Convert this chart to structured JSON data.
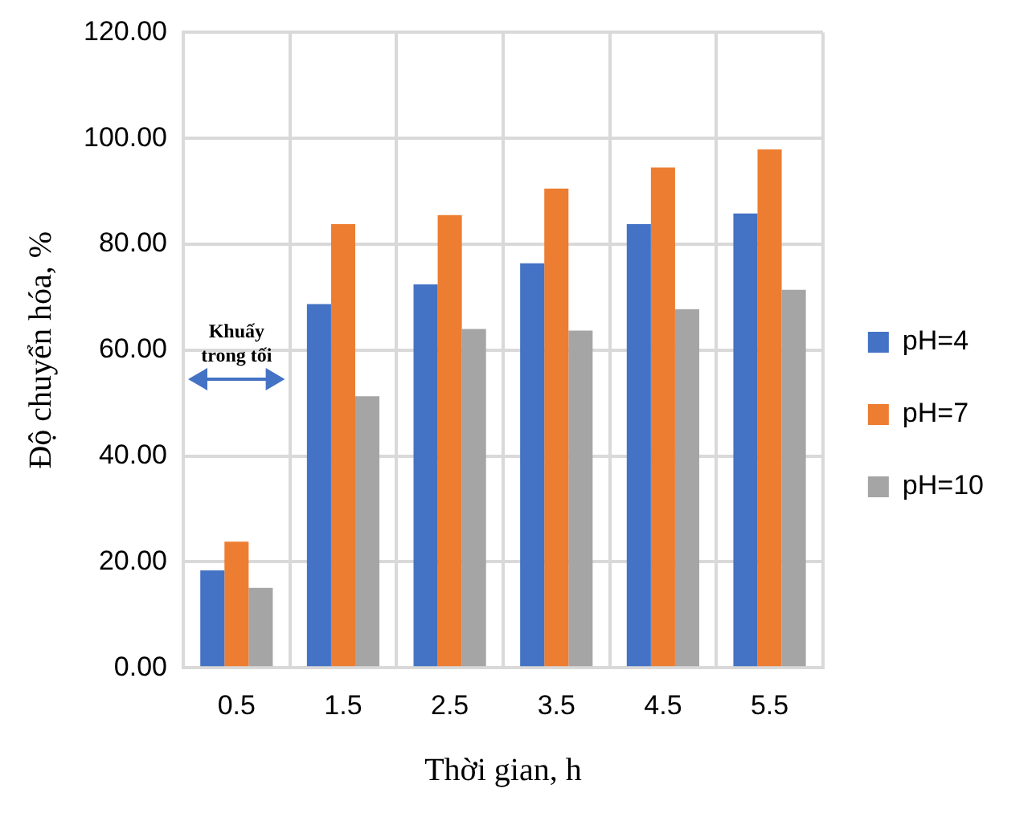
{
  "chart_data": {
    "type": "bar",
    "xlabel": "Thời gian, h",
    "ylabel": "Độ chuyển hóa, %",
    "categories": [
      "0.5",
      "1.5",
      "2.5",
      "3.5",
      "4.5",
      "5.5"
    ],
    "series": [
      {
        "name": "pH=4",
        "color": "#4472c4",
        "values": [
          18.4,
          68.7,
          72.4,
          76.4,
          83.8,
          85.8
        ]
      },
      {
        "name": "pH=7",
        "color": "#ed7d31",
        "values": [
          23.8,
          83.8,
          85.5,
          90.5,
          94.5,
          97.9
        ]
      },
      {
        "name": "pH=10",
        "color": "#a5a5a5",
        "values": [
          15.1,
          51.3,
          64.0,
          63.7,
          67.7,
          71.4
        ]
      }
    ],
    "ylim": [
      0,
      120
    ],
    "yticks": [
      {
        "value": 0,
        "label": "0.00"
      },
      {
        "value": 20,
        "label": "20.00"
      },
      {
        "value": 40,
        "label": "40.00"
      },
      {
        "value": 60,
        "label": "60.00"
      },
      {
        "value": 80,
        "label": "80.00"
      },
      {
        "value": 100,
        "label": "100.00"
      },
      {
        "value": 120,
        "label": "120.00"
      }
    ],
    "grid": true,
    "legend": "right",
    "annotations": [
      "Khuấy trong tối"
    ]
  }
}
